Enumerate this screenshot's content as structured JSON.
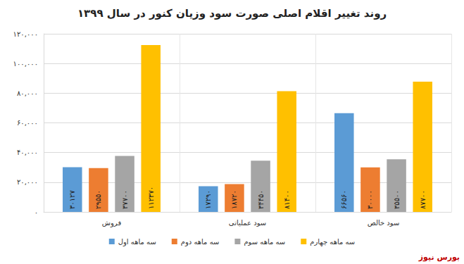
{
  "chart_data": {
    "type": "bar",
    "title": "روند تغییر اقلام اصلی صورت سود وزیان کنور در سال ۱۳۹۹",
    "categories": [
      "فروش",
      "سود عملیاتی",
      "سود خالص"
    ],
    "series": [
      {
        "name": "سه ماهه اول",
        "color": "#5b9bd5",
        "values": [
          30127,
          17290,
          66560
        ],
        "value_labels": [
          "۳۰۱۲۷",
          "۱۷۲۹۰",
          "۶۶۵۶۰"
        ]
      },
      {
        "name": "سه ماهه دوم",
        "color": "#ed7d31",
        "values": [
          29550,
          18720,
          30000
        ],
        "value_labels": [
          "۲۹۵۵۰",
          "۱۸۷۲۰",
          "۳۰۰۰۰"
        ]
      },
      {
        "name": "سه ماهه سوم",
        "color": "#a5a5a5",
        "values": [
          37700,
          34450,
          35500
        ],
        "value_labels": [
          "۳۷۷۰۰",
          "۳۴۴۵۰",
          "۳۵۵۰۰"
        ]
      },
      {
        "name": "سه ماهه چهارم",
        "color": "#ffc000",
        "values": [
          112370,
          81400,
          87700
        ],
        "value_labels": [
          "۱۱۲۳۷۰",
          "۸۱۴۰۰",
          "۸۷۷۰۰"
        ]
      }
    ],
    "ylim": [
      0,
      120000
    ],
    "yticks": [
      {
        "value": 0,
        "label": "۰"
      },
      {
        "value": 20000,
        "label": "۲۰,۰۰۰"
      },
      {
        "value": 40000,
        "label": "۴۰,۰۰۰"
      },
      {
        "value": 60000,
        "label": "۶۰,۰۰۰"
      },
      {
        "value": 80000,
        "label": "۸۰,۰۰۰"
      },
      {
        "value": 100000,
        "label": "۱۰۰,۰۰۰"
      },
      {
        "value": 120000,
        "label": "۱۲۰,۰۰۰"
      }
    ],
    "grid": true,
    "legend": "bottom",
    "data_labels": true,
    "annotations": [
      {
        "text": "بورس نیوز"
      }
    ]
  }
}
